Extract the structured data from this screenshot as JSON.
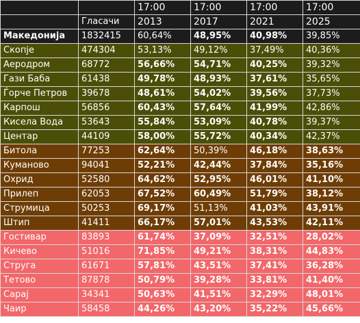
{
  "header": {
    "row1": [
      "",
      "",
      "17:00",
      "17:00",
      "17:00",
      "17:00"
    ],
    "row2": [
      "",
      "Гласачи",
      "2013",
      "2017",
      "2021",
      "2025"
    ]
  },
  "rows": [
    {
      "group": "nat",
      "name": "Македонија",
      "voters": "1832415",
      "v2013": "60,64%",
      "v2017": "48,95%",
      "v2021": "40,98%",
      "v2025": "39,85%",
      "bold": [
        false,
        true,
        true,
        false
      ]
    },
    {
      "group": "skopje",
      "name": "Скопје",
      "voters": "474304",
      "v2013": "53,13%",
      "v2017": "49,12%",
      "v2021": "37,49%",
      "v2025": "40,36%",
      "bold": [
        false,
        false,
        false,
        false
      ]
    },
    {
      "group": "skopje",
      "name": "Аеродром",
      "voters": "68772",
      "v2013": "56,66%",
      "v2017": "54,71%",
      "v2021": "40,25%",
      "v2025": "39,32%",
      "bold": [
        true,
        true,
        true,
        false
      ]
    },
    {
      "group": "skopje",
      "name": "Гази Баба",
      "voters": "61438",
      "v2013": "49,78%",
      "v2017": "48,93%",
      "v2021": "37,61%",
      "v2025": "35,65%",
      "bold": [
        true,
        true,
        true,
        false
      ]
    },
    {
      "group": "skopje",
      "name": "Ѓорче Петров",
      "voters": "39678",
      "v2013": "48,61%",
      "v2017": "54,02%",
      "v2021": "39,56%",
      "v2025": "37,73%",
      "bold": [
        true,
        true,
        true,
        false
      ]
    },
    {
      "group": "skopje",
      "name": "Карпош",
      "voters": "56856",
      "v2013": "60,43%",
      "v2017": "57,64%",
      "v2021": "41,99%",
      "v2025": "42,86%",
      "bold": [
        true,
        true,
        true,
        false
      ]
    },
    {
      "group": "skopje",
      "name": "Кисела Вода",
      "voters": "53643",
      "v2013": "55,84%",
      "v2017": "53,09%",
      "v2021": "40,78%",
      "v2025": "39,37%",
      "bold": [
        true,
        true,
        true,
        false
      ]
    },
    {
      "group": "skopje",
      "name": "Центар",
      "voters": "44109",
      "v2013": "58,00%",
      "v2017": "55,72%",
      "v2021": "40,34%",
      "v2025": "42,37%",
      "bold": [
        true,
        true,
        true,
        false
      ]
    },
    {
      "group": "east",
      "name": "Битола",
      "voters": "77253",
      "v2013": "62,64%",
      "v2017": "50,39%",
      "v2021": "46,18%",
      "v2025": "38,63%",
      "bold": [
        true,
        false,
        true,
        true
      ]
    },
    {
      "group": "east",
      "name": "Куманово",
      "voters": "94041",
      "v2013": "52,21%",
      "v2017": "42,44%",
      "v2021": "37,84%",
      "v2025": "35,16%",
      "bold": [
        true,
        true,
        true,
        true
      ]
    },
    {
      "group": "east",
      "name": "Охрид",
      "voters": "52580",
      "v2013": "64,62%",
      "v2017": "52,95%",
      "v2021": "46,01%",
      "v2025": "41,10%",
      "bold": [
        true,
        true,
        true,
        true
      ]
    },
    {
      "group": "east",
      "name": "Прилеп",
      "voters": "62053",
      "v2013": "67,52%",
      "v2017": "60,49%",
      "v2021": "51,79%",
      "v2025": "38,12%",
      "bold": [
        true,
        true,
        true,
        true
      ]
    },
    {
      "group": "east",
      "name": "Струмица",
      "voters": "50253",
      "v2013": "69,17%",
      "v2017": "51,13%",
      "v2021": "41,03%",
      "v2025": "43,91%",
      "bold": [
        true,
        false,
        true,
        true
      ]
    },
    {
      "group": "east",
      "name": "Штип",
      "voters": "41411",
      "v2013": "66,17%",
      "v2017": "57,01%",
      "v2021": "43,53%",
      "v2025": "42,11%",
      "bold": [
        true,
        true,
        true,
        true
      ]
    },
    {
      "group": "west",
      "name": "Гостивар",
      "voters": "83893",
      "v2013": "61,74%",
      "v2017": "37,09%",
      "v2021": "32,51%",
      "v2025": "28,02%",
      "bold": [
        true,
        true,
        true,
        true
      ]
    },
    {
      "group": "west",
      "name": "Кичево",
      "voters": "51016",
      "v2013": "71,85%",
      "v2017": "49,21%",
      "v2021": "38,31%",
      "v2025": "44,83%",
      "bold": [
        true,
        true,
        true,
        true
      ]
    },
    {
      "group": "west",
      "name": "Струга",
      "voters": "61671",
      "v2013": "57,81%",
      "v2017": "43,51%",
      "v2021": "37,41%",
      "v2025": "36,28%",
      "bold": [
        true,
        true,
        true,
        true
      ]
    },
    {
      "group": "west",
      "name": "Тетово",
      "voters": "87878",
      "v2013": "50,79%",
      "v2017": "39,28%",
      "v2021": "33,81%",
      "v2025": "41,40%",
      "bold": [
        true,
        true,
        true,
        true
      ]
    },
    {
      "group": "west",
      "name": "Сарај",
      "voters": "34341",
      "v2013": "50,63%",
      "v2017": "41,51%",
      "v2021": "32,29%",
      "v2025": "48,01%",
      "bold": [
        true,
        true,
        true,
        true
      ]
    },
    {
      "group": "west",
      "name": "Чаир",
      "voters": "58458",
      "v2013": "44,26%",
      "v2017": "43,20%",
      "v2021": "35,22%",
      "v2025": "45,66%",
      "bold": [
        true,
        true,
        true,
        true
      ]
    }
  ],
  "colors": {
    "header_bg": "#1c1c1c",
    "national_bg": "#1c1c1c",
    "skopje_bg": "#4b4e07",
    "other_cities_bg": "#6e3d06",
    "albanian_majority_bg": "#f2676a",
    "grid": "#d9d9d9",
    "text": "#ffffff"
  }
}
